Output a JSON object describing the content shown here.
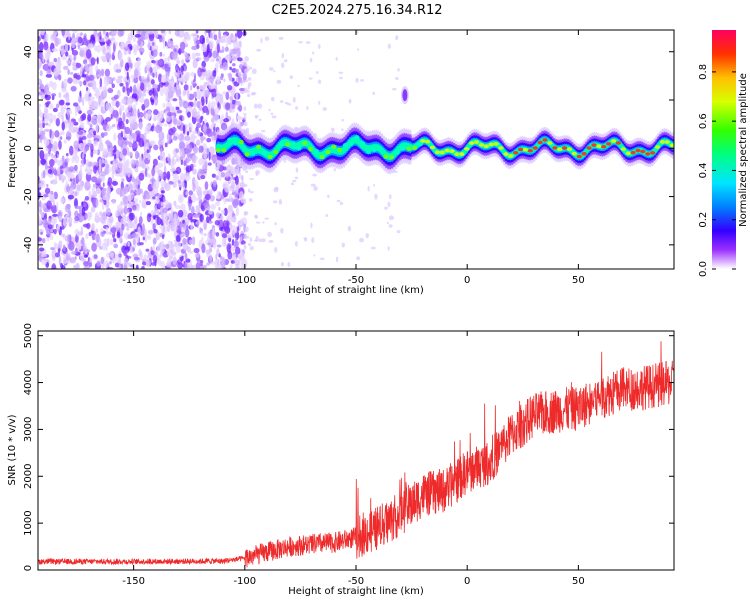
{
  "title": "C2E5.2024.275.16.34.R12",
  "chart_data": [
    {
      "type": "heatmap",
      "xlabel": "Height of straight line (km)",
      "ylabel": "Frequency (Hz)",
      "xlim": [
        -193,
        93
      ],
      "ylim": [
        -50,
        49
      ],
      "xticks": [
        -150,
        -100,
        -50,
        0,
        50
      ],
      "yticks": [
        -40,
        -20,
        0,
        20,
        40
      ],
      "colorbar": {
        "label": "Normalized spectral amplitude",
        "range": [
          0,
          0.97
        ],
        "ticks": [
          0.0,
          0.2,
          0.4,
          0.6,
          0.8
        ],
        "tick_labels": [
          "0.0",
          "0.2",
          "0.4",
          "0.6",
          "0.8"
        ]
      },
      "features": {
        "noise_region_x": [
          -193,
          -100
        ],
        "signal_band_start_x": -112,
        "signal_band_center_hz": 0,
        "off_band_blob": {
          "x": -28,
          "y": 22
        }
      }
    },
    {
      "type": "line",
      "xlabel": "Height of straight line (km)",
      "ylabel": "SNR (10 * v/v)",
      "xlim": [
        -193,
        93
      ],
      "ylim": [
        0,
        5100
      ],
      "xticks": [
        -150,
        -100,
        -50,
        0,
        50
      ],
      "yticks": [
        0,
        1000,
        2000,
        3000,
        4000,
        5000
      ],
      "series": [
        {
          "color": "#ee2a2a",
          "x": [
            -193,
            -150,
            -110,
            -100,
            -90,
            -80,
            -70,
            -60,
            -50,
            -40,
            -30,
            -20,
            -10,
            0,
            10,
            20,
            30,
            40,
            50,
            60,
            70,
            80,
            93
          ],
          "y": [
            180,
            180,
            190,
            250,
            380,
            500,
            550,
            580,
            700,
            900,
            1200,
            1600,
            1700,
            2100,
            2300,
            2900,
            3300,
            3400,
            3450,
            3700,
            3850,
            3900,
            4000
          ]
        }
      ]
    }
  ]
}
